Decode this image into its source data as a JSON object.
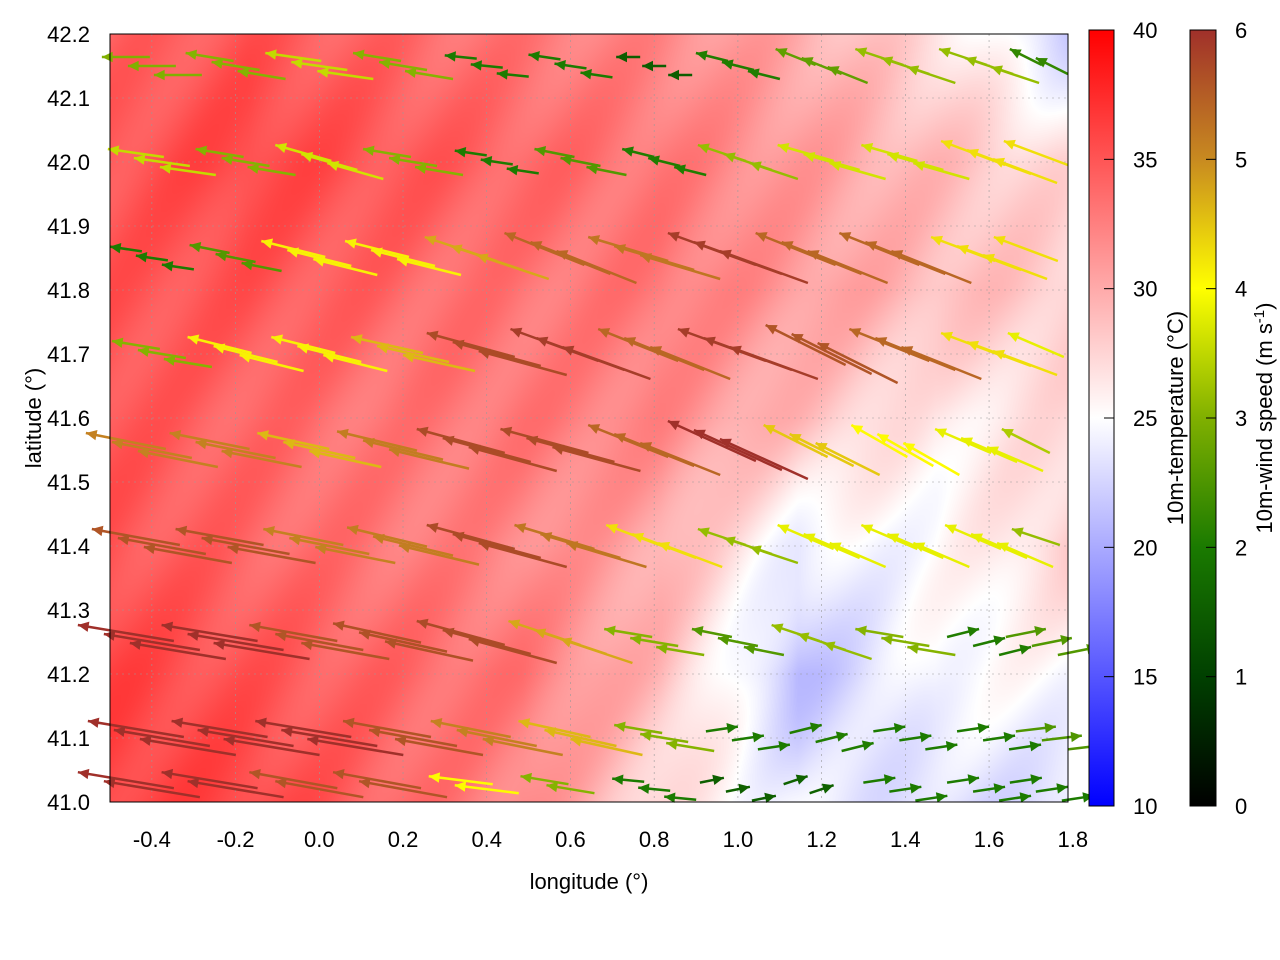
{
  "chart_data": {
    "type": "heatmap",
    "title": "",
    "xlabel": "longitude (°)",
    "ylabel": "latitude (°)",
    "xlim": [
      -0.5,
      1.8
    ],
    "ylim": [
      41.0,
      42.2
    ],
    "xticks": [
      "-0.4",
      "-0.2",
      "0.0",
      "0.2",
      "0.4",
      "0.6",
      "0.8",
      "1.0",
      "1.2",
      "1.4",
      "1.6",
      "1.8"
    ],
    "yticks": [
      "41.0",
      "41.1",
      "41.2",
      "41.3",
      "41.4",
      "41.5",
      "41.6",
      "41.7",
      "41.8",
      "41.9",
      "42.0",
      "42.1",
      "42.2"
    ],
    "grid": true,
    "temperature": {
      "label": "10m-temperature (°C)",
      "range": [
        10,
        40
      ],
      "ticks": [
        "10",
        "15",
        "20",
        "25",
        "30",
        "35",
        "40"
      ],
      "colors": {
        "low": "#0000ff",
        "mid": "#ffffff",
        "high": "#ff0000"
      },
      "lon": [
        -0.5,
        -0.17,
        0.16,
        0.49,
        0.81,
        1.14,
        1.47,
        1.8
      ],
      "lat": [
        42.2,
        42.0,
        41.8,
        41.6,
        41.4,
        41.2,
        41.0
      ],
      "values": [
        [
          34,
          35,
          34,
          33,
          32,
          30,
          27,
          22
        ],
        [
          35,
          36,
          35,
          34,
          33,
          31,
          29,
          27
        ],
        [
          35,
          35,
          34,
          33,
          33,
          31,
          29,
          28
        ],
        [
          35,
          34,
          33,
          33,
          32,
          29,
          26,
          27
        ],
        [
          35,
          34,
          33,
          32,
          30,
          24,
          25,
          28
        ],
        [
          36,
          35,
          34,
          33,
          29,
          21,
          25,
          25
        ],
        [
          36,
          36,
          34,
          32,
          27,
          24,
          23,
          23
        ]
      ]
    },
    "wind": {
      "label": "10m-wind speed (m s-1)",
      "range": [
        0,
        6
      ],
      "ticks": [
        "0",
        "1",
        "2",
        "3",
        "4",
        "5",
        "6"
      ],
      "colors": [
        "#000000",
        "#004000",
        "#1a7a00",
        "#80b000",
        "#ffff00",
        "#c88a20",
        "#a0302a"
      ],
      "lon": [
        -0.4,
        -0.2,
        0.0,
        0.2,
        0.4,
        0.6,
        0.8,
        1.0,
        1.2,
        1.4,
        1.6,
        1.75
      ],
      "lat": [
        42.15,
        42.0,
        41.85,
        41.7,
        41.55,
        41.4,
        41.25,
        41.1,
        41.02
      ],
      "uv": [
        [
          [
            -3,
            0
          ],
          [
            -3,
            0.5
          ],
          [
            -3.5,
            0.5
          ],
          [
            -3,
            0.5
          ],
          [
            -2,
            0.2
          ],
          [
            -2,
            0.3
          ],
          [
            -1.5,
            0
          ],
          [
            -2,
            0.5
          ],
          [
            -2.5,
            1
          ],
          [
            -3,
            1
          ],
          [
            -3,
            1
          ],
          [
            -2,
            1
          ]
        ],
        [
          [
            -3.5,
            0.5
          ],
          [
            -3,
            0.5
          ],
          [
            -3.5,
            1
          ],
          [
            -3,
            0.5
          ],
          [
            -2,
            0.3
          ],
          [
            -2.5,
            0.5
          ],
          [
            -2,
            0.5
          ],
          [
            -3,
            1
          ],
          [
            -3.5,
            1
          ],
          [
            -3.5,
            1
          ],
          [
            -4,
            1.5
          ],
          [
            -4,
            1.5
          ]
        ],
        [
          [
            -2,
            0.3
          ],
          [
            -2.5,
            0.5
          ],
          [
            -4,
            1
          ],
          [
            -4,
            1
          ],
          [
            -4.5,
            1.5
          ],
          [
            -5,
            2
          ],
          [
            -5,
            1.5
          ],
          [
            -5.5,
            2
          ],
          [
            -5,
            2
          ],
          [
            -5,
            2
          ],
          [
            -4,
            1.5
          ],
          [
            -4,
            1.5
          ]
        ],
        [
          [
            -3,
            0.5
          ],
          [
            -4,
            1
          ],
          [
            -4,
            1
          ],
          [
            -4.5,
            1
          ],
          [
            -5.5,
            1.5
          ],
          [
            -5.5,
            2
          ],
          [
            -5,
            2
          ],
          [
            -5.5,
            2
          ],
          [
            -5,
            2.5
          ],
          [
            -5,
            2
          ],
          [
            -4,
            1.5
          ],
          [
            -3.5,
            1.5
          ]
        ],
        [
          [
            -5,
            1
          ],
          [
            -5,
            1
          ],
          [
            -4.5,
            1
          ],
          [
            -5,
            1.2
          ],
          [
            -5.5,
            1.5
          ],
          [
            -5.5,
            1.5
          ],
          [
            -5,
            2
          ],
          [
            -5.5,
            2.5
          ],
          [
            -4,
            2
          ],
          [
            -3.5,
            2
          ],
          [
            -3.5,
            1.5
          ],
          [
            -3,
            1.5
          ]
        ],
        [
          [
            -5.5,
            1
          ],
          [
            -5.5,
            1
          ],
          [
            -5,
            1
          ],
          [
            -5,
            1.2
          ],
          [
            -5.5,
            1.5
          ],
          [
            -5,
            1.5
          ],
          [
            -4,
            1.5
          ],
          [
            -3,
            1
          ],
          [
            -3.5,
            1.5
          ],
          [
            -3.5,
            1.5
          ],
          [
            -3.5,
            1.5
          ],
          [
            -3,
            1
          ]
        ],
        [
          [
            -6,
            1
          ],
          [
            -6,
            1
          ],
          [
            -5.5,
            1
          ],
          [
            -5.5,
            1.2
          ],
          [
            -5.5,
            1.5
          ],
          [
            -4.5,
            1.5
          ],
          [
            -3,
            0.5
          ],
          [
            -2.5,
            0.5
          ],
          [
            -3,
            1
          ],
          [
            -3,
            0.5
          ],
          [
            2,
            0.5
          ],
          [
            2.5,
            0.5
          ]
        ],
        [
          [
            -6,
            1
          ],
          [
            -6,
            1
          ],
          [
            -6,
            1
          ],
          [
            -5.5,
            1
          ],
          [
            -5,
            1
          ],
          [
            -4.5,
            1
          ],
          [
            -3,
            0.5
          ],
          [
            2,
            0.3
          ],
          [
            2,
            0.5
          ],
          [
            2,
            0.3
          ],
          [
            2,
            0.3
          ],
          [
            2.5,
            0.3
          ]
        ],
        [
          [
            -6,
            1
          ],
          [
            -6,
            1
          ],
          [
            -5.5,
            1
          ],
          [
            -5.5,
            1
          ],
          [
            -4,
            0.5
          ],
          [
            -3,
            0.5
          ],
          [
            -2,
            0.2
          ],
          [
            1.5,
            0.3
          ],
          [
            1.5,
            0.5
          ],
          [
            2,
            0.3
          ],
          [
            2,
            0.3
          ],
          [
            2,
            0.3
          ]
        ]
      ]
    }
  }
}
